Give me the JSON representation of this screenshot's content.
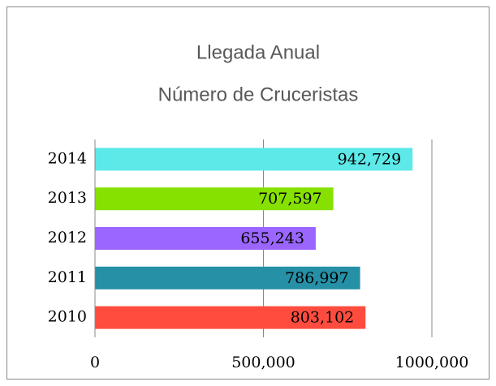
{
  "chart_data": {
    "type": "hbar",
    "title": "Llegada Anual",
    "subtitle": "Número de Cruceristas",
    "categories": [
      "2010",
      "2011",
      "2012",
      "2013",
      "2014"
    ],
    "values": [
      803102,
      786997,
      655243,
      707597,
      942729
    ],
    "value_labels": [
      "803,102",
      "786,997",
      "655,243",
      "707,597",
      "942,729"
    ],
    "colors": [
      "#ff4c3f",
      "#2590a6",
      "#9a66ff",
      "#86e100",
      "#5ce9e8"
    ],
    "xlim": [
      0,
      1000000
    ],
    "xticks": [
      0,
      {
        "value": 500000,
        "label": "500,000"
      },
      {
        "value": 1000000,
        "label": "1000,000"
      }
    ],
    "grid": true
  }
}
